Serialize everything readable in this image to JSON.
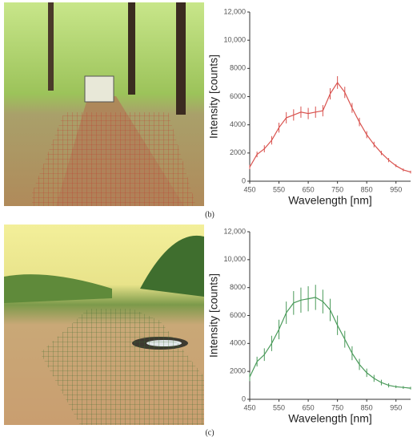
{
  "chart_data": [
    {
      "type": "line",
      "label": "(b)",
      "xlabel": "Wavelength [nm]",
      "ylabel": "Intensity [counts]",
      "x": [
        450,
        475,
        500,
        525,
        550,
        575,
        600,
        625,
        650,
        675,
        700,
        725,
        750,
        775,
        800,
        825,
        850,
        875,
        900,
        925,
        950,
        975,
        1000
      ],
      "series": [
        {
          "color": "#d9534f",
          "values": [
            1000,
            1900,
            2300,
            2900,
            3800,
            4500,
            4700,
            4900,
            4800,
            4900,
            5000,
            6200,
            7000,
            6300,
            5200,
            4200,
            3300,
            2600,
            2000,
            1500,
            1100,
            800,
            650
          ],
          "errors": [
            150,
            200,
            250,
            300,
            350,
            400,
            400,
            400,
            400,
            400,
            400,
            400,
            450,
            400,
            350,
            300,
            250,
            200,
            150,
            150,
            100,
            100,
            100
          ]
        }
      ],
      "xlim": [
        450,
        1000
      ],
      "xticks": [
        450,
        550,
        650,
        750,
        850,
        950
      ],
      "ylim": [
        0,
        12000
      ],
      "yticks": [
        0,
        2000,
        4000,
        6000,
        8000,
        {
          "value": 10000,
          "label": "10,000"
        },
        {
          "value": 12000,
          "label": "12,000"
        }
      ]
    },
    {
      "type": "line",
      "label": "(c)",
      "xlabel": "Wavelength [nm]",
      "ylabel": "Intensity [counts]",
      "x": [
        450,
        475,
        500,
        525,
        550,
        575,
        600,
        625,
        650,
        675,
        700,
        725,
        750,
        775,
        800,
        825,
        850,
        875,
        900,
        925,
        950,
        975,
        1000
      ],
      "series": [
        {
          "color": "#4a9a5a",
          "values": [
            1600,
            2700,
            3200,
            4000,
            5000,
            6200,
            6900,
            7100,
            7200,
            7300,
            7000,
            6400,
            5300,
            4300,
            3300,
            2500,
            1900,
            1500,
            1200,
            1000,
            900,
            850,
            800
          ],
          "errors": [
            300,
            350,
            450,
            550,
            700,
            800,
            850,
            900,
            900,
            900,
            850,
            800,
            700,
            600,
            500,
            400,
            300,
            250,
            200,
            150,
            100,
            100,
            100
          ]
        }
      ],
      "xlim": [
        450,
        1000
      ],
      "xticks": [
        450,
        550,
        650,
        750,
        850,
        950
      ],
      "ylim": [
        0,
        12000
      ],
      "yticks": [
        0,
        2000,
        4000,
        6000,
        8000,
        {
          "value": 10000,
          "label": "10,000"
        },
        {
          "value": 12000,
          "label": "12,000"
        }
      ]
    }
  ]
}
